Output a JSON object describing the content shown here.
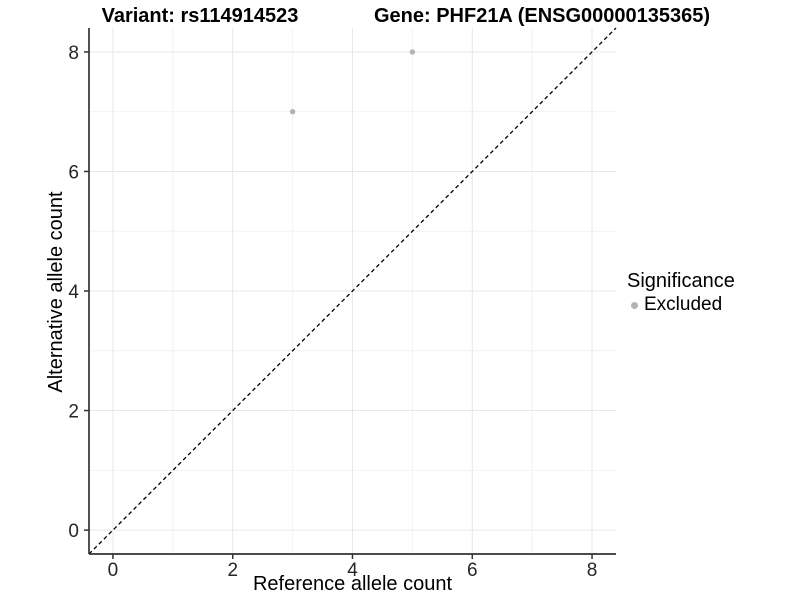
{
  "chart_data": {
    "type": "scatter",
    "title_left": "Variant: rs114914523",
    "title_right": "Gene: PHF21A (ENSG00000135365)",
    "xlabel": "Reference allele count",
    "ylabel": "Alternative allele count",
    "xlim": [
      -0.4,
      8.4
    ],
    "ylim": [
      -0.4,
      8.4
    ],
    "x_ticks": [
      0,
      2,
      4,
      6,
      8
    ],
    "y_ticks": [
      0,
      2,
      4,
      6,
      8
    ],
    "x_minor_ticks": [
      1,
      3,
      5,
      7
    ],
    "y_minor_ticks": [
      1,
      3,
      5,
      7
    ],
    "grid": "major+minor",
    "identity_line": {
      "style": "dashed",
      "color": "#000000",
      "from": -0.4,
      "to": 8.4
    },
    "series": [
      {
        "name": "Excluded",
        "color": "#b3b3b3",
        "points": [
          {
            "x": 3,
            "y": 7
          },
          {
            "x": 5,
            "y": 8
          }
        ]
      }
    ],
    "legend": {
      "title": "Significance",
      "position": "right",
      "entries": [
        {
          "label": "Excluded",
          "color": "#b3b3b3"
        }
      ]
    }
  },
  "colors": {
    "background": "#ffffff",
    "grid_major": "#e7e7e7",
    "grid_minor": "#f2f2f2",
    "axis_line": "#333333",
    "tick_text": "#262626",
    "title_text": "#000000",
    "point": "#b3b3b3",
    "identity_line": "#000000"
  }
}
